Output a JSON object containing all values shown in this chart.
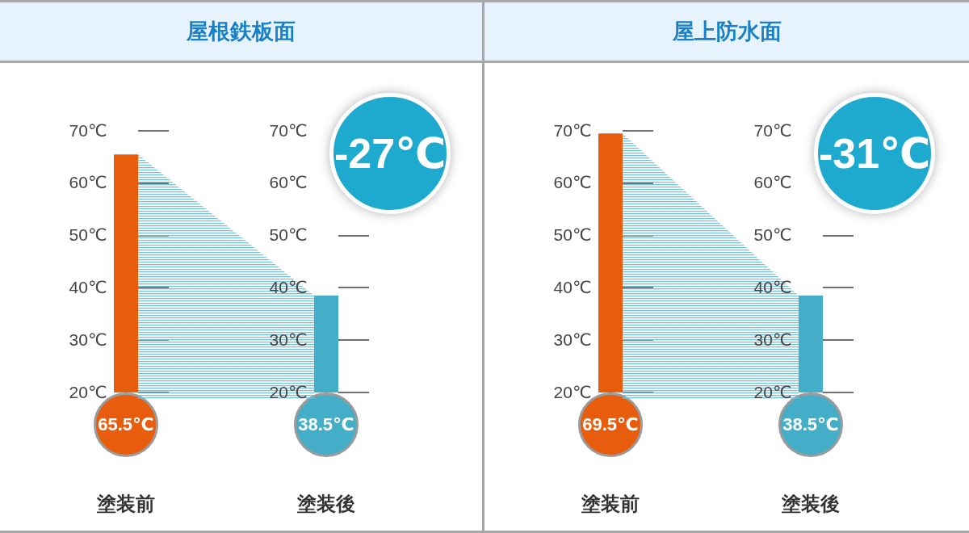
{
  "chart_data": [
    {
      "type": "bar",
      "title": "屋根鉄板面",
      "categories": [
        "塗装前",
        "塗装後"
      ],
      "values": [
        65.5,
        38.5
      ],
      "colors": [
        "#e85c0e",
        "#44adc7"
      ],
      "value_labels": [
        "65.5℃",
        "38.5℃"
      ],
      "ylim": [
        20,
        70
      ],
      "yticks": [
        {
          "value": 20,
          "label": "20℃"
        },
        {
          "value": 30,
          "label": "30℃"
        },
        {
          "value": 40,
          "label": "40℃"
        },
        {
          "value": 50,
          "label": "50℃"
        },
        {
          "value": 60,
          "label": "60℃"
        },
        {
          "value": 70,
          "label": "70℃"
        }
      ],
      "annotations": [
        "-27℃"
      ]
    },
    {
      "type": "bar",
      "title": "屋上防水面",
      "categories": [
        "塗装前",
        "塗装後"
      ],
      "values": [
        69.5,
        38.5
      ],
      "colors": [
        "#e85c0e",
        "#44adc7"
      ],
      "value_labels": [
        "69.5℃",
        "38.5℃"
      ],
      "ylim": [
        20,
        70
      ],
      "yticks": [
        {
          "value": 20,
          "label": "20℃"
        },
        {
          "value": 30,
          "label": "30℃"
        },
        {
          "value": 40,
          "label": "40℃"
        },
        {
          "value": 50,
          "label": "50℃"
        },
        {
          "value": 60,
          "label": "60℃"
        },
        {
          "value": 70,
          "label": "70℃"
        }
      ],
      "annotations": [
        "-31℃"
      ]
    }
  ]
}
